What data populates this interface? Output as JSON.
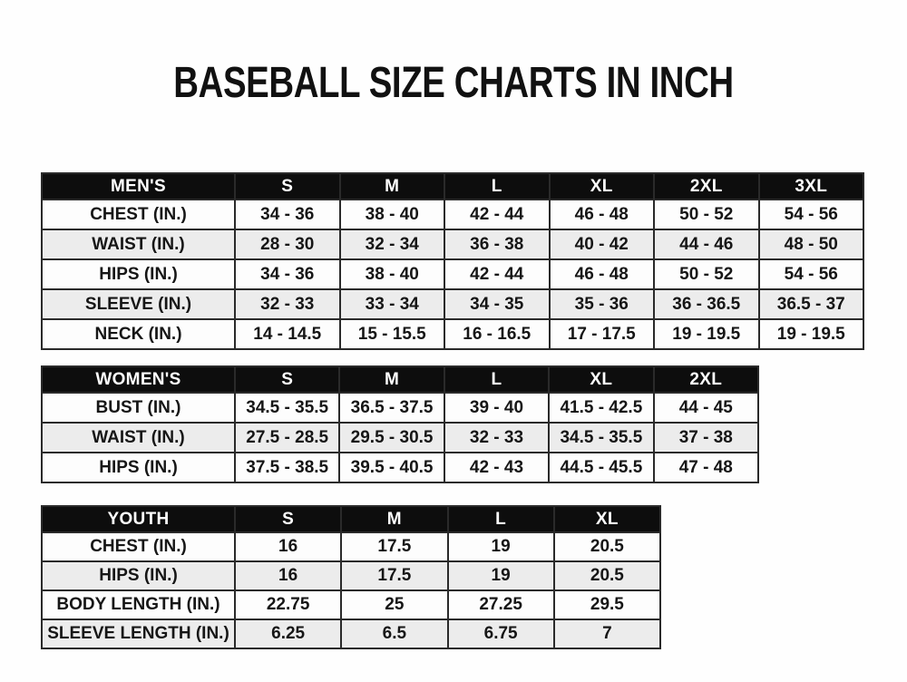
{
  "page": {
    "title": "BASEBALL SIZE CHARTS IN INCH"
  },
  "colors": {
    "page_bg": "#fefefe",
    "header_bg": "#0d0d0d",
    "header_text": "#ffffff",
    "row_stripe": "#ececec",
    "row_white": "#fdfdfd",
    "border": "#2a2a2a",
    "text": "#161616"
  },
  "tables": [
    {
      "id": "mens",
      "columns": [
        "MEN'S",
        "S",
        "M",
        "L",
        "XL",
        "2XL",
        "3XL"
      ],
      "rows": [
        {
          "label": "CHEST (IN.)",
          "values": [
            "34 - 36",
            "38 - 40",
            "42 - 44",
            "46 - 48",
            "50 - 52",
            "54 - 56"
          ]
        },
        {
          "label": "WAIST (IN.)",
          "values": [
            "28 - 30",
            "32 - 34",
            "36 - 38",
            "40 - 42",
            "44 - 46",
            "48 - 50"
          ]
        },
        {
          "label": "HIPS (IN.)",
          "values": [
            "34 - 36",
            "38 - 40",
            "42 - 44",
            "46 - 48",
            "50 - 52",
            "54 - 56"
          ]
        },
        {
          "label": "SLEEVE (IN.)",
          "values": [
            "32 - 33",
            "33 - 34",
            "34 - 35",
            "35 - 36",
            "36 - 36.5",
            "36.5 - 37"
          ]
        },
        {
          "label": "NECK (IN.)",
          "values": [
            "14 - 14.5",
            "15 - 15.5",
            "16 - 16.5",
            "17 - 17.5",
            "19 - 19.5",
            "19 - 19.5"
          ]
        }
      ]
    },
    {
      "id": "womens",
      "columns": [
        "WOMEN'S",
        "S",
        "M",
        "L",
        "XL",
        "2XL"
      ],
      "rows": [
        {
          "label": "BUST (IN.)",
          "values": [
            "34.5 - 35.5",
            "36.5 - 37.5",
            "39 - 40",
            "41.5 - 42.5",
            "44 - 45"
          ]
        },
        {
          "label": "WAIST (IN.)",
          "values": [
            "27.5 - 28.5",
            "29.5 - 30.5",
            "32 - 33",
            "34.5 - 35.5",
            "37 - 38"
          ]
        },
        {
          "label": "HIPS (IN.)",
          "values": [
            "37.5 - 38.5",
            "39.5 - 40.5",
            "42 - 43",
            "44.5 - 45.5",
            "47 - 48"
          ]
        }
      ]
    },
    {
      "id": "youth",
      "columns": [
        "YOUTH",
        "S",
        "M",
        "L",
        "XL"
      ],
      "rows": [
        {
          "label": "CHEST (IN.)",
          "values": [
            "16",
            "17.5",
            "19",
            "20.5"
          ]
        },
        {
          "label": "HIPS (IN.)",
          "values": [
            "16",
            "17.5",
            "19",
            "20.5"
          ]
        },
        {
          "label": "BODY LENGTH (IN.)",
          "values": [
            "22.75",
            "25",
            "27.25",
            "29.5"
          ]
        },
        {
          "label": "SLEEVE LENGTH (IN.)",
          "values": [
            "6.25",
            "6.5",
            "6.75",
            "7"
          ]
        }
      ]
    }
  ]
}
